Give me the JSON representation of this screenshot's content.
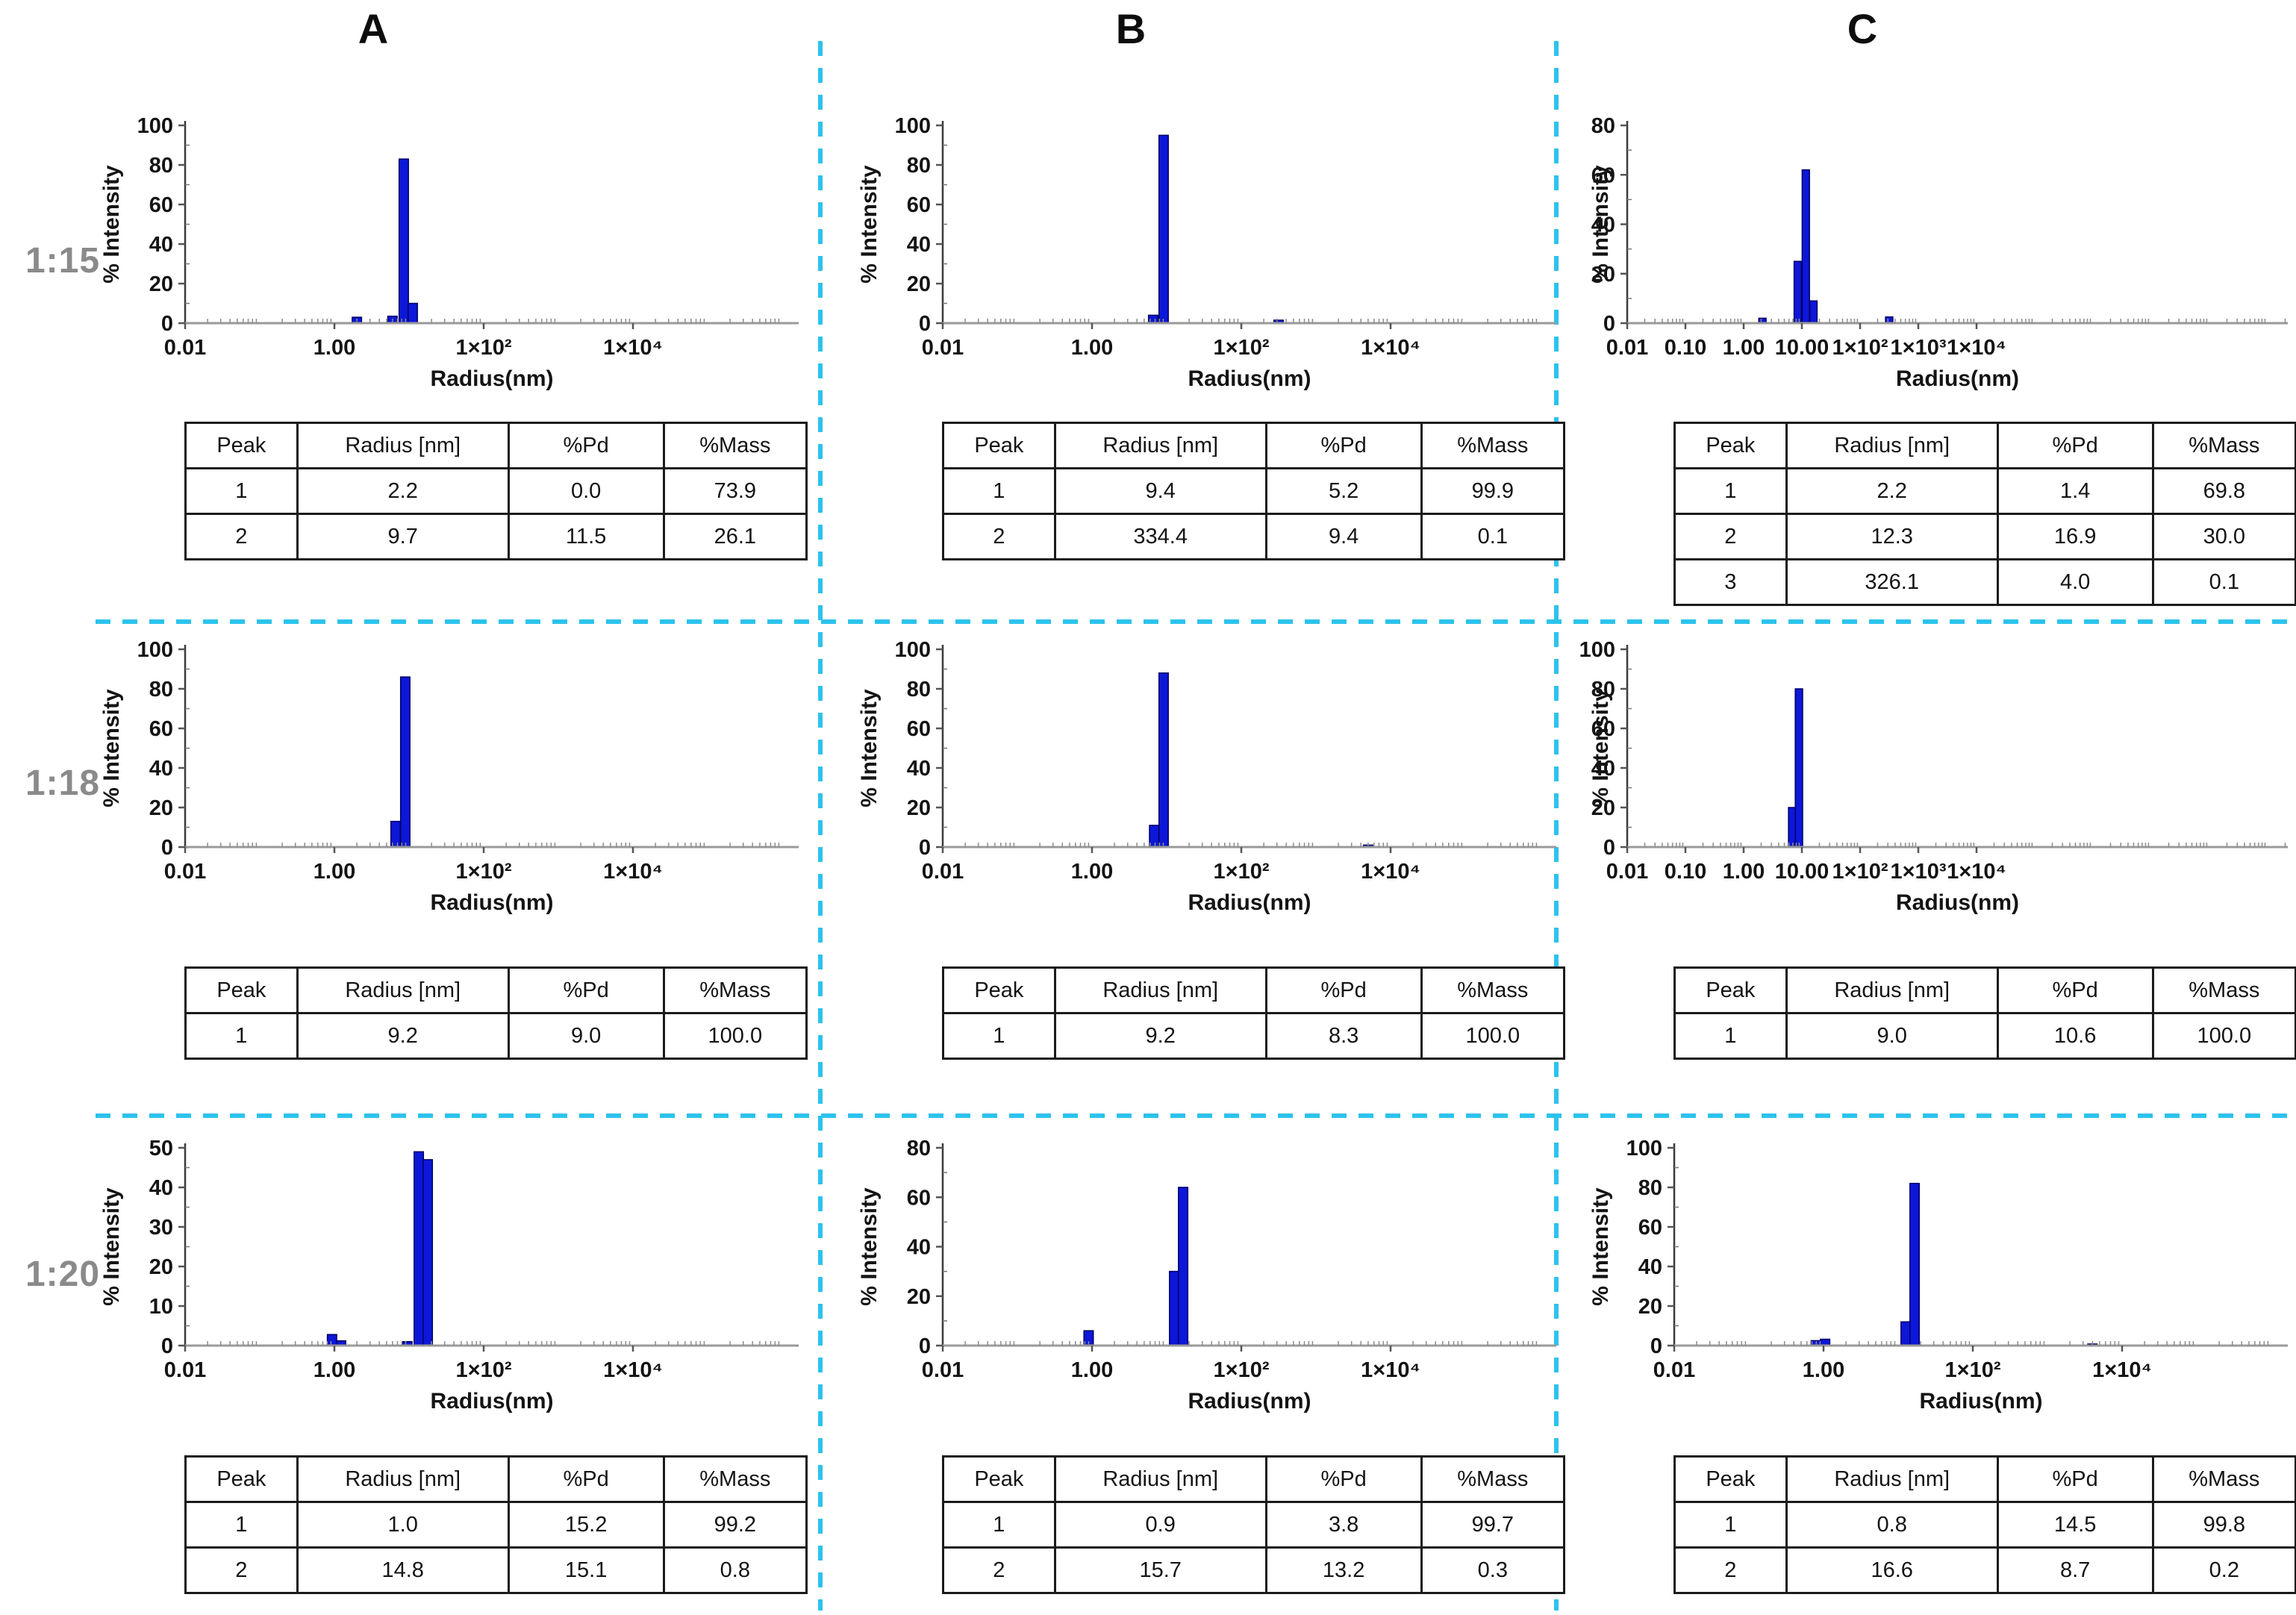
{
  "column_headers": [
    "A",
    "B",
    "C"
  ],
  "row_labels": [
    "1:15",
    "1:18",
    "1:20"
  ],
  "axis_labels": {
    "x": "Radius(nm)",
    "y": "% Intensity"
  },
  "table_headers": [
    "Peak",
    "Radius [nm]",
    "%Pd",
    "%Mass"
  ],
  "accent_colors": {
    "bar_fill": "#0d17d8",
    "bar_edge": "#000066",
    "dashed_grid": "#2cc3ec",
    "row_label_gray": "#8a8a8a",
    "axis_line": "#9a9a9a",
    "tick_mark": "#555555"
  },
  "chart_data": [
    {
      "id": "A 1:15",
      "type": "bar",
      "column": "A",
      "ratio": "1:15",
      "xlabel": "Radius(nm)",
      "ylabel": "% Intensity",
      "x_scale": "log",
      "ylim": [
        0,
        100
      ],
      "yticks": [
        0,
        20,
        40,
        60,
        80,
        100
      ],
      "xticks": [
        {
          "label": "0.01",
          "log": -2
        },
        {
          "label": "1.00",
          "log": 0
        },
        {
          "label": "1×10²",
          "log": 2
        },
        {
          "label": "1×10⁴",
          "log": 4
        }
      ],
      "bars": [
        {
          "radius_nm": 2.0,
          "intensity": 3.0
        },
        {
          "radius_nm": 6.0,
          "intensity": 3.5
        },
        {
          "radius_nm": 8.5,
          "intensity": 83.0
        },
        {
          "radius_nm": 11.2,
          "intensity": 10.0
        }
      ],
      "table_rows": [
        [
          "1",
          "2.2",
          "0.0",
          "73.9"
        ],
        [
          "2",
          "9.7",
          "11.5",
          "26.1"
        ]
      ]
    },
    {
      "id": "B 1:15",
      "type": "bar",
      "column": "B",
      "ratio": "1:15",
      "xlabel": "Radius(nm)",
      "ylabel": "% Intensity",
      "x_scale": "log",
      "ylim": [
        0,
        100
      ],
      "yticks": [
        0,
        20,
        40,
        60,
        80,
        100
      ],
      "xticks": [
        {
          "label": "0.01",
          "log": -2
        },
        {
          "label": "1.00",
          "log": 0
        },
        {
          "label": "1×10²",
          "log": 2
        },
        {
          "label": "1×10⁴",
          "log": 4
        }
      ],
      "bars": [
        {
          "radius_nm": 6.6,
          "intensity": 4.0
        },
        {
          "radius_nm": 9.1,
          "intensity": 95.0
        },
        {
          "radius_nm": 316.0,
          "intensity": 1.5
        }
      ],
      "table_rows": [
        [
          "1",
          "9.4",
          "5.2",
          "99.9"
        ],
        [
          "2",
          "334.4",
          "9.4",
          "0.1"
        ]
      ]
    },
    {
      "id": "C 1:15",
      "type": "bar",
      "column": "C",
      "ratio": "1:15",
      "xlabel": "Radius(nm)",
      "ylabel": "% Intensity",
      "x_scale": "log",
      "ylim": [
        0,
        80
      ],
      "yticks": [
        0,
        20,
        40,
        60,
        80
      ],
      "xticks": [
        {
          "label": "0.01",
          "log": -2
        },
        {
          "label": "0.10",
          "log": -1
        },
        {
          "label": "1.00",
          "log": 0
        },
        {
          "label": "10.00",
          "log": 1
        },
        {
          "label": "1×10²",
          "log": 2
        },
        {
          "label": "1×10³",
          "log": 3
        },
        {
          "label": "1×10⁴",
          "log": 4
        }
      ],
      "bars": [
        {
          "radius_nm": 2.1,
          "intensity": 2.0
        },
        {
          "radius_nm": 8.5,
          "intensity": 25.0
        },
        {
          "radius_nm": 11.7,
          "intensity": 62.0
        },
        {
          "radius_nm": 15.8,
          "intensity": 9.0
        },
        {
          "radius_nm": 316.0,
          "intensity": 2.5
        }
      ],
      "table_rows": [
        [
          "1",
          "2.2",
          "1.4",
          "69.8"
        ],
        [
          "2",
          "12.3",
          "16.9",
          "30.0"
        ],
        [
          "3",
          "326.1",
          "4.0",
          "0.1"
        ]
      ]
    },
    {
      "id": "A 1:18",
      "type": "bar",
      "column": "A",
      "ratio": "1:18",
      "xlabel": "Radius(nm)",
      "ylabel": "% Intensity",
      "x_scale": "log",
      "ylim": [
        0,
        100
      ],
      "yticks": [
        0,
        20,
        40,
        60,
        80,
        100
      ],
      "xticks": [
        {
          "label": "0.01",
          "log": -2
        },
        {
          "label": "1.00",
          "log": 0
        },
        {
          "label": "1×10²",
          "log": 2
        },
        {
          "label": "1×10⁴",
          "log": 4
        }
      ],
      "bars": [
        {
          "radius_nm": 6.6,
          "intensity": 13.0
        },
        {
          "radius_nm": 8.9,
          "intensity": 86.0
        }
      ],
      "table_rows": [
        [
          "1",
          "9.2",
          "9.0",
          "100.0"
        ]
      ]
    },
    {
      "id": "B 1:18",
      "type": "bar",
      "column": "B",
      "ratio": "1:18",
      "xlabel": "Radius(nm)",
      "ylabel": "% Intensity",
      "x_scale": "log",
      "ylim": [
        0,
        100
      ],
      "yticks": [
        0,
        20,
        40,
        60,
        80,
        100
      ],
      "xticks": [
        {
          "label": "0.01",
          "log": -2
        },
        {
          "label": "1.00",
          "log": 0
        },
        {
          "label": "1×10²",
          "log": 2
        },
        {
          "label": "1×10⁴",
          "log": 4
        }
      ],
      "bars": [
        {
          "radius_nm": 6.8,
          "intensity": 11.0
        },
        {
          "radius_nm": 9.1,
          "intensity": 88.0
        },
        {
          "radius_nm": 5000.0,
          "intensity": 1.0
        }
      ],
      "table_rows": [
        [
          "1",
          "9.2",
          "8.3",
          "100.0"
        ]
      ]
    },
    {
      "id": "C 1:18",
      "type": "bar",
      "column": "C",
      "ratio": "1:18",
      "xlabel": "Radius(nm)",
      "ylabel": "% Intensity",
      "x_scale": "log",
      "ylim": [
        0,
        100
      ],
      "yticks": [
        0,
        20,
        40,
        60,
        80,
        100
      ],
      "xticks": [
        {
          "label": "0.01",
          "log": -2
        },
        {
          "label": "0.10",
          "log": -1
        },
        {
          "label": "1.00",
          "log": 0
        },
        {
          "label": "10.00",
          "log": 1
        },
        {
          "label": "1×10²",
          "log": 2
        },
        {
          "label": "1×10³",
          "log": 3
        },
        {
          "label": "1×10⁴",
          "log": 4
        }
      ],
      "bars": [
        {
          "radius_nm": 6.8,
          "intensity": 20.0
        },
        {
          "radius_nm": 8.9,
          "intensity": 80.0
        }
      ],
      "table_rows": [
        [
          "1",
          "9.0",
          "10.6",
          "100.0"
        ]
      ]
    },
    {
      "id": "A 1:20",
      "type": "bar",
      "column": "A",
      "ratio": "1:20",
      "xlabel": "Radius(nm)",
      "ylabel": "% Intensity",
      "x_scale": "log",
      "ylim": [
        0,
        50
      ],
      "yticks": [
        0,
        10,
        20,
        30,
        40,
        50
      ],
      "xticks": [
        {
          "label": "0.01",
          "log": -2
        },
        {
          "label": "1.00",
          "log": 0
        },
        {
          "label": "1×10²",
          "log": 2
        },
        {
          "label": "1×10⁴",
          "log": 4
        }
      ],
      "bars": [
        {
          "radius_nm": 0.93,
          "intensity": 2.8
        },
        {
          "radius_nm": 1.23,
          "intensity": 1.2
        },
        {
          "radius_nm": 9.5,
          "intensity": 1.0
        },
        {
          "radius_nm": 13.5,
          "intensity": 49.0
        },
        {
          "radius_nm": 17.8,
          "intensity": 47.0
        }
      ],
      "table_rows": [
        [
          "1",
          "1.0",
          "15.2",
          "99.2"
        ],
        [
          "2",
          "14.8",
          "15.1",
          "0.8"
        ]
      ]
    },
    {
      "id": "B 1:20",
      "type": "bar",
      "column": "B",
      "ratio": "1:20",
      "xlabel": "Radius(nm)",
      "ylabel": "% Intensity",
      "x_scale": "log",
      "ylim": [
        0,
        80
      ],
      "yticks": [
        0,
        20,
        40,
        60,
        80
      ],
      "xticks": [
        {
          "label": "0.01",
          "log": -2
        },
        {
          "label": "1.00",
          "log": 0
        },
        {
          "label": "1×10²",
          "log": 2
        },
        {
          "label": "1×10⁴",
          "log": 4
        }
      ],
      "bars": [
        {
          "radius_nm": 0.9,
          "intensity": 6.0
        },
        {
          "radius_nm": 12.6,
          "intensity": 30.0
        },
        {
          "radius_nm": 16.6,
          "intensity": 64.0
        }
      ],
      "table_rows": [
        [
          "1",
          "0.9",
          "3.8",
          "99.7"
        ],
        [
          "2",
          "15.7",
          "13.2",
          "0.3"
        ]
      ]
    },
    {
      "id": "C 1:20",
      "type": "bar",
      "column": "C",
      "ratio": "1:20",
      "xlabel": "Radius(nm)",
      "ylabel": "% Intensity",
      "x_scale": "log",
      "ylim": [
        0,
        100
      ],
      "yticks": [
        0,
        20,
        40,
        60,
        80,
        100
      ],
      "xticks": [
        {
          "label": "0.01",
          "log": -2
        },
        {
          "label": "1.00",
          "log": 0
        },
        {
          "label": "1×10²",
          "log": 2
        },
        {
          "label": "1×10⁴",
          "log": 4
        }
      ],
      "bars": [
        {
          "radius_nm": 0.79,
          "intensity": 2.5
        },
        {
          "radius_nm": 1.05,
          "intensity": 3.2
        },
        {
          "radius_nm": 12.6,
          "intensity": 12.0
        },
        {
          "radius_nm": 16.6,
          "intensity": 82.0
        },
        {
          "radius_nm": 4000.0,
          "intensity": 0.8
        }
      ],
      "table_rows": [
        [
          "1",
          "0.8",
          "14.5",
          "99.8"
        ],
        [
          "2",
          "16.6",
          "8.7",
          "0.2"
        ]
      ]
    }
  ]
}
